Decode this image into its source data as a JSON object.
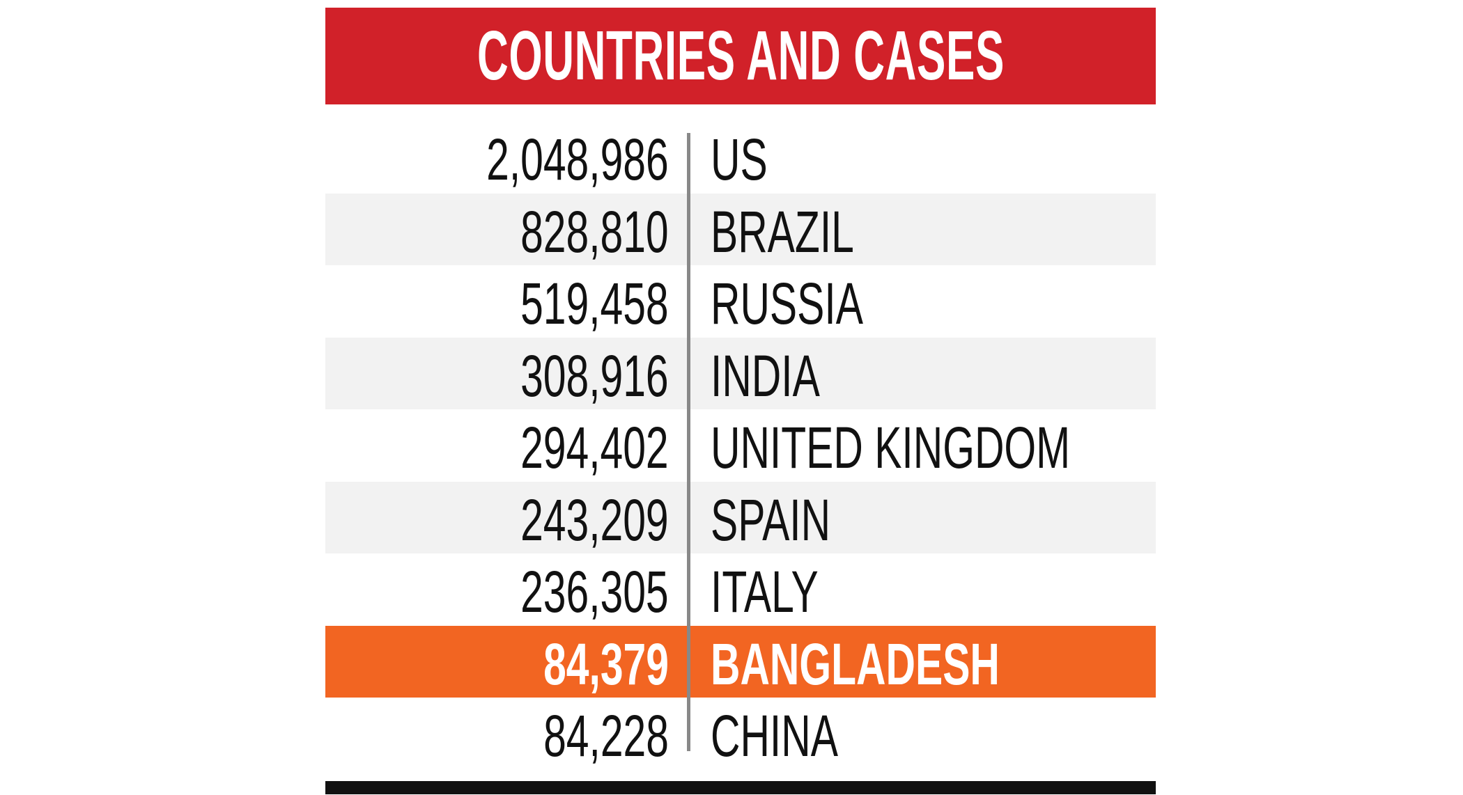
{
  "title": "COUNTRIES AND CASES",
  "rows": [
    {
      "cases": "2,048,986",
      "country": "US"
    },
    {
      "cases": "828,810",
      "country": "BRAZIL"
    },
    {
      "cases": "519,458",
      "country": "RUSSIA"
    },
    {
      "cases": "308,916",
      "country": "INDIA"
    },
    {
      "cases": "294,402",
      "country": "UNITED KINGDOM"
    },
    {
      "cases": "243,209",
      "country": "SPAIN"
    },
    {
      "cases": "236,305",
      "country": "ITALY"
    },
    {
      "cases": "84,379",
      "country": "BANGLADESH"
    },
    {
      "cases": "84,228",
      "country": "CHINA"
    }
  ],
  "colors": {
    "header": "#d12129",
    "highlight": "#f26522",
    "stripe": "#f2f2f2"
  }
}
